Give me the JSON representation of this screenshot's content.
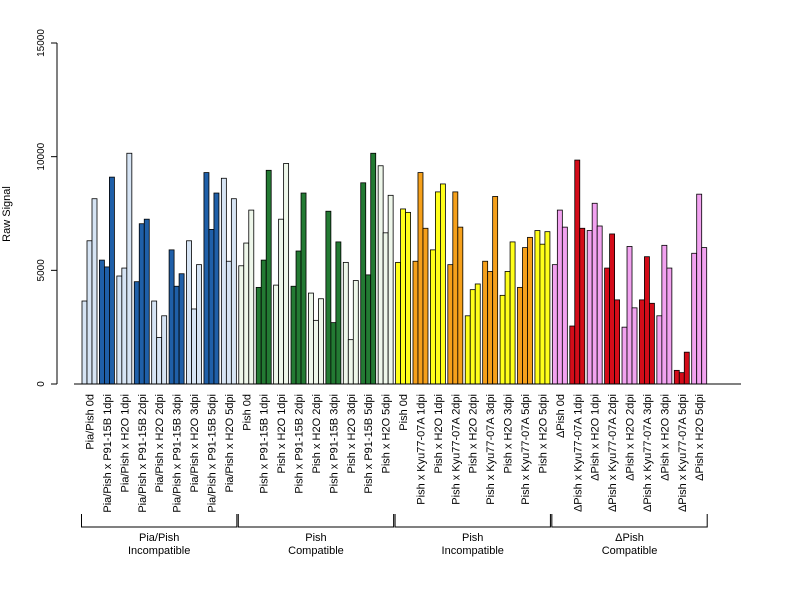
{
  "chart_data": {
    "type": "bar",
    "title": "",
    "xlabel": "",
    "ylabel": "Raw Signal",
    "ylim": [
      0,
      15000
    ],
    "yticks": [
      0,
      5000,
      10000,
      15000
    ],
    "grid": false,
    "legend": "none",
    "categories": [
      "Pia/Pish 0d",
      "Pia/Pish x P91-15B 1dpi",
      "Pia/Pish x H2O 1dpi",
      "Pia/Pish x P91-15B 2dpi",
      "Pia/Pish x H2O 2dpi",
      "Pia/Pish x P91-15B 3dpi",
      "Pia/Pish x H2O 3dpi",
      "Pia/Pish x P91-15B 5dpi",
      "Pia/Pish x H2O 5dpi",
      "Pish 0d",
      "Pish x P91-15B 1dpi",
      "Pish x H2O 1dpi",
      "Pish x P91-15B 2dpi",
      "Pish x H2O 2dpi",
      "Pish x P91-15B 3dpi",
      "Pish x H2O 3dpi",
      "Pish x P91-15B 5dpi",
      "Pish x H2O 5dpi",
      "Pish 0d",
      "Pish x Kyu77-07A 1dpi",
      "Pish x H2O 1dpi",
      "Pish x Kyu77-07A 2dpi",
      "Pish x H2O 2dpi",
      "Pish x Kyu77-07A 3dpi",
      "Pish x H2O 3dpi",
      "Pish x Kyu77-07A 5dpi",
      "Pish x H2O 5dpi",
      "ΔPish 0d",
      "ΔPish x Kyu77-07A 1dpi",
      "ΔPish x H2O 1dpi",
      "ΔPish x Kyu77-07A 2dpi",
      "ΔPish x H2O 2dpi",
      "ΔPish x Kyu77-07A 3dpi",
      "ΔPish x H2O 3dpi",
      "ΔPish x Kyu77-07A 5dpi",
      "ΔPish x H2O 5dpi"
    ],
    "values": [
      [
        3650,
        6300,
        8150
      ],
      [
        5450,
        5150,
        9100
      ],
      [
        4750,
        5100,
        10150
      ],
      [
        4500,
        7050,
        7250
      ],
      [
        3650,
        2050,
        3000
      ],
      [
        5900,
        4300,
        4850
      ],
      [
        6300,
        3300,
        5250
      ],
      [
        9300,
        6800,
        8400
      ],
      [
        9050,
        5400,
        8150
      ],
      [
        5200,
        6200,
        7650
      ],
      [
        4250,
        5450,
        9400
      ],
      [
        4350,
        7250,
        9700
      ],
      [
        4300,
        5850,
        8400
      ],
      [
        4000,
        2800,
        3750
      ],
      [
        7600,
        2700,
        6250
      ],
      [
        5350,
        1950,
        4550
      ],
      [
        8850,
        4800,
        10150
      ],
      [
        9600,
        6650,
        8300
      ],
      [
        5350,
        7700,
        7550
      ],
      [
        5400,
        9300,
        6850
      ],
      [
        5900,
        8450,
        8800
      ],
      [
        5250,
        8450,
        6900
      ],
      [
        3000,
        4150,
        4400
      ],
      [
        5400,
        4950,
        8250
      ],
      [
        3900,
        4950,
        6250
      ],
      [
        4250,
        6000,
        6450
      ],
      [
        6750,
        6150,
        6700
      ],
      [
        5250,
        7650,
        6900
      ],
      [
        2550,
        9850,
        6850
      ],
      [
        6750,
        7950,
        6950
      ],
      [
        5100,
        6600,
        3700
      ],
      [
        2500,
        6050,
        3350
      ],
      [
        3700,
        5600,
        3550
      ],
      [
        3000,
        6100,
        5100
      ],
      [
        600,
        500,
        1400
      ],
      [
        5750,
        8350,
        6000
      ]
    ],
    "groups": [
      {
        "label_line1": "Pia/Pish",
        "label_line2": "Incompatible",
        "start": 0,
        "end": 8
      },
      {
        "label_line1": "Pish",
        "label_line2": "Compatible",
        "start": 9,
        "end": 17
      },
      {
        "label_line1": "Pish",
        "label_line2": "Incompatible",
        "start": 18,
        "end": 26
      },
      {
        "label_line1": "ΔPish",
        "label_line2": "Compatible",
        "start": 27,
        "end": 35
      }
    ],
    "colors": {
      "light_blue": "#d6e4f4",
      "dark_blue": "#1f5fa8",
      "light_green": "#eef7ea",
      "dark_green": "#237a33",
      "yellow": "#ffff1a",
      "orange": "#f5a01b",
      "pink": "#f2a2f0",
      "red": "#d40c19"
    },
    "category_colors": [
      "light_blue",
      "dark_blue",
      "light_blue",
      "dark_blue",
      "light_blue",
      "dark_blue",
      "light_blue",
      "dark_blue",
      "light_blue",
      "light_green",
      "dark_green",
      "light_green",
      "dark_green",
      "light_green",
      "dark_green",
      "light_green",
      "dark_green",
      "light_green",
      "yellow",
      "orange",
      "yellow",
      "orange",
      "yellow",
      "orange",
      "yellow",
      "orange",
      "yellow",
      "pink",
      "red",
      "pink",
      "red",
      "pink",
      "red",
      "pink",
      "red",
      "pink"
    ]
  }
}
